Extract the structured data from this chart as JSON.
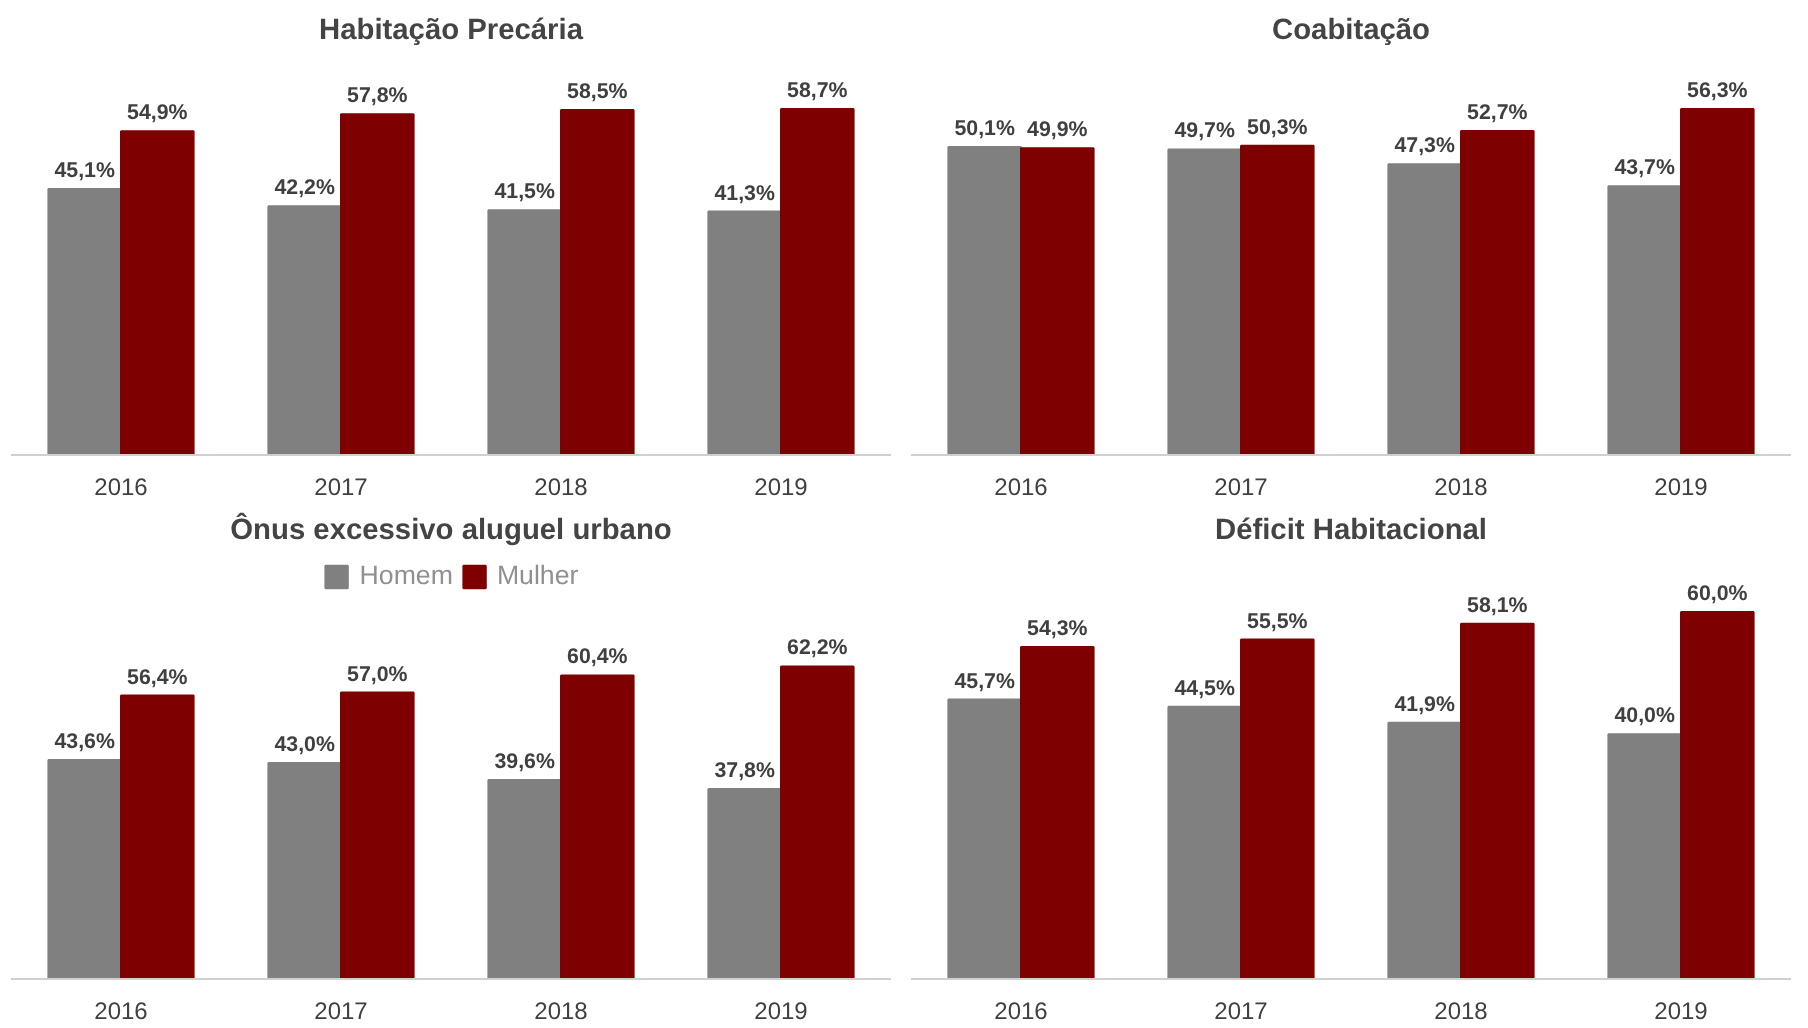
{
  "chart_data": [
    {
      "type": "bar",
      "title": "Habitação Precária",
      "categories": [
        "2016",
        "2017",
        "2018",
        "2019"
      ],
      "series": [
        {
          "color": "#808080",
          "values": [
            45.1,
            42.2,
            41.5,
            41.3
          ],
          "value_labels": [
            "45,1%",
            "42,2%",
            "41,5%",
            "41,3%"
          ]
        },
        {
          "color": "#7f0000",
          "values": [
            54.9,
            57.8,
            58.5,
            58.7
          ],
          "value_labels": [
            "54,9%",
            "57,8%",
            "58,5%",
            "58,7%"
          ]
        }
      ]
    },
    {
      "type": "bar",
      "title": "Coabitação",
      "categories": [
        "2016",
        "2017",
        "2018",
        "2019"
      ],
      "series": [
        {
          "color": "#808080",
          "values": [
            50.1,
            49.7,
            47.3,
            43.7
          ],
          "value_labels": [
            "50,1%",
            "49,7%",
            "47,3%",
            "43,7%"
          ]
        },
        {
          "color": "#7f0000",
          "values": [
            49.9,
            50.3,
            52.7,
            56.3
          ],
          "value_labels": [
            "49,9%",
            "50,3%",
            "52,7%",
            "56,3%"
          ]
        }
      ]
    },
    {
      "type": "bar",
      "title": "Ônus excessivo aluguel urbano",
      "categories": [
        "2016",
        "2017",
        "2018",
        "2019"
      ],
      "legend": "top",
      "series": [
        {
          "name": "Homem",
          "color": "#808080",
          "values": [
            43.6,
            43.0,
            39.6,
            37.8
          ],
          "value_labels": [
            "43,6%",
            "43,0%",
            "39,6%",
            "37,8%"
          ]
        },
        {
          "name": "Mulher",
          "color": "#7f0000",
          "values": [
            56.4,
            57.0,
            60.4,
            62.2
          ],
          "value_labels": [
            "56,4%",
            "57,0%",
            "60,4%",
            "62,2%"
          ]
        }
      ]
    },
    {
      "type": "bar",
      "title": "Déficit Habitacional",
      "categories": [
        "2016",
        "2017",
        "2018",
        "2019"
      ],
      "series": [
        {
          "color": "#808080",
          "values": [
            45.7,
            44.5,
            41.9,
            40.0
          ],
          "value_labels": [
            "45,7%",
            "44,5%",
            "41,9%",
            "40,0%"
          ]
        },
        {
          "color": "#7f0000",
          "values": [
            54.3,
            55.5,
            58.1,
            60.0
          ],
          "value_labels": [
            "54,3%",
            "55,5%",
            "58,1%",
            "60,0%"
          ]
        }
      ]
    }
  ]
}
